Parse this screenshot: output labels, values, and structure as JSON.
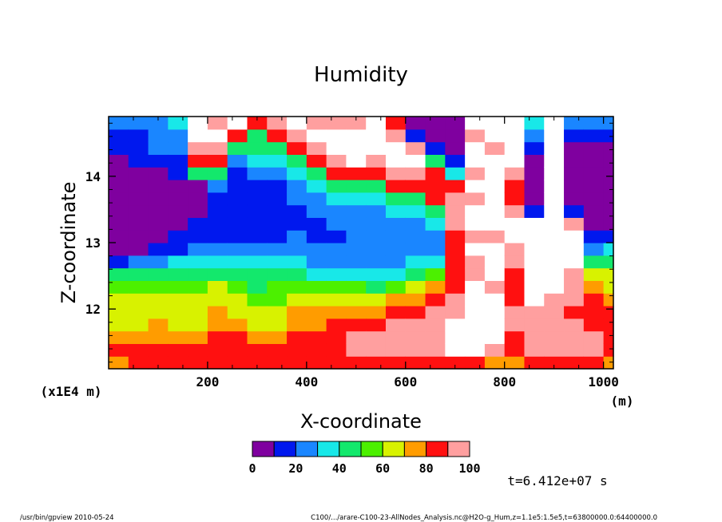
{
  "chart_data": {
    "type": "heatmap",
    "title": "Humidity",
    "xlabel": "X-coordinate",
    "ylabel": "Z-coordinate",
    "x_unit": "(m)",
    "y_scale_label": "(x1E4 m)",
    "xlim": [
      0,
      1020
    ],
    "ylim": [
      11.1,
      14.9
    ],
    "x_ticks": [
      200,
      400,
      600,
      800,
      1000
    ],
    "y_ticks": [
      12,
      13,
      14
    ],
    "x_tick_labels": [
      "200",
      "400",
      "600",
      "800",
      "1000"
    ],
    "y_tick_labels": [
      "12",
      "13",
      "14"
    ],
    "colorbar": {
      "levels": [
        0,
        10,
        20,
        30,
        40,
        50,
        60,
        70,
        80,
        90,
        100
      ],
      "labels": [
        "0",
        "20",
        "40",
        "60",
        "80",
        "100"
      ],
      "label_values": [
        0,
        20,
        40,
        60,
        80,
        100
      ],
      "colors": [
        "#7f009f",
        "#0018ee",
        "#1a86ff",
        "#18e8e8",
        "#13e86c",
        "#4cf000",
        "#d8f200",
        "#ff9c00",
        "#ff1010",
        "#ff9f9f"
      ],
      "above_color": "#ffffff"
    },
    "time_label": "t=6.412e+07 s",
    "columns": [
      {
        "x": 0,
        "levels": [
          7,
          8,
          7,
          6,
          6,
          6,
          5,
          4,
          1,
          0,
          0,
          0,
          0,
          0,
          0,
          0,
          0,
          1,
          1,
          2
        ]
      },
      {
        "x": 40,
        "levels": [
          8,
          8,
          7,
          6,
          6,
          6,
          5,
          4,
          2,
          0,
          0,
          0,
          0,
          0,
          0,
          0,
          1,
          1,
          1,
          2
        ]
      },
      {
        "x": 80,
        "levels": [
          8,
          8,
          7,
          7,
          6,
          6,
          5,
          4,
          2,
          1,
          0,
          0,
          0,
          0,
          0,
          0,
          1,
          2,
          2,
          2
        ]
      },
      {
        "x": 120,
        "levels": [
          8,
          8,
          7,
          6,
          6,
          6,
          5,
          4,
          3,
          1,
          1,
          0,
          0,
          0,
          0,
          1,
          1,
          2,
          2,
          3
        ]
      },
      {
        "x": 160,
        "levels": [
          8,
          8,
          7,
          6,
          6,
          6,
          5,
          4,
          3,
          2,
          1,
          1,
          0,
          0,
          0,
          4,
          8,
          9,
          10,
          10
        ]
      },
      {
        "x": 200,
        "levels": [
          8,
          8,
          8,
          7,
          7,
          6,
          6,
          4,
          3,
          2,
          1,
          1,
          1,
          1,
          2,
          4,
          8,
          9,
          10,
          9
        ]
      },
      {
        "x": 240,
        "levels": [
          8,
          8,
          8,
          7,
          6,
          6,
          5,
          4,
          3,
          2,
          1,
          1,
          1,
          1,
          1,
          1,
          2,
          4,
          8,
          10
        ]
      },
      {
        "x": 280,
        "levels": [
          8,
          8,
          7,
          6,
          6,
          5,
          4,
          4,
          3,
          2,
          1,
          1,
          1,
          1,
          1,
          2,
          3,
          4,
          4,
          8
        ]
      },
      {
        "x": 320,
        "levels": [
          8,
          8,
          7,
          6,
          6,
          5,
          5,
          4,
          3,
          2,
          1,
          1,
          1,
          1,
          1,
          2,
          3,
          4,
          8,
          9
        ]
      },
      {
        "x": 360,
        "levels": [
          8,
          8,
          8,
          7,
          7,
          6,
          5,
          4,
          3,
          2,
          2,
          1,
          1,
          2,
          2,
          3,
          4,
          8,
          9,
          10
        ]
      },
      {
        "x": 400,
        "levels": [
          8,
          8,
          8,
          7,
          7,
          6,
          5,
          3,
          2,
          2,
          1,
          1,
          2,
          2,
          3,
          4,
          8,
          9,
          10,
          9
        ]
      },
      {
        "x": 440,
        "levels": [
          8,
          8,
          8,
          8,
          7,
          6,
          5,
          3,
          2,
          2,
          1,
          2,
          2,
          3,
          4,
          8,
          9,
          10,
          10,
          9
        ]
      },
      {
        "x": 480,
        "levels": [
          8,
          9,
          9,
          8,
          7,
          6,
          5,
          3,
          2,
          2,
          2,
          2,
          2,
          3,
          4,
          8,
          10,
          10,
          10,
          9
        ]
      },
      {
        "x": 520,
        "levels": [
          8,
          9,
          9,
          8,
          7,
          6,
          4,
          3,
          2,
          2,
          2,
          2,
          2,
          3,
          4,
          8,
          9,
          10,
          10,
          10
        ]
      },
      {
        "x": 560,
        "levels": [
          8,
          9,
          9,
          9,
          8,
          7,
          5,
          3,
          2,
          2,
          2,
          2,
          3,
          4,
          8,
          9,
          10,
          10,
          9,
          8
        ]
      },
      {
        "x": 600,
        "levels": [
          8,
          9,
          9,
          9,
          8,
          7,
          6,
          4,
          3,
          2,
          2,
          2,
          3,
          4,
          8,
          9,
          10,
          9,
          1,
          0
        ]
      },
      {
        "x": 640,
        "levels": [
          8,
          9,
          9,
          9,
          9,
          8,
          7,
          5,
          3,
          2,
          2,
          3,
          4,
          8,
          8,
          8,
          4,
          1,
          0,
          0
        ]
      },
      {
        "x": 680,
        "levels": [
          8,
          10,
          10,
          10,
          9,
          9,
          8,
          8,
          8,
          8,
          8,
          9,
          9,
          9,
          8,
          3,
          1,
          0,
          0,
          0
        ]
      },
      {
        "x": 720,
        "levels": [
          8,
          10,
          10,
          10,
          10,
          10,
          10,
          9,
          9,
          10,
          9,
          10,
          10,
          9,
          10,
          9,
          10,
          10,
          9,
          10
        ]
      },
      {
        "x": 760,
        "levels": [
          7,
          9,
          10,
          10,
          10,
          10,
          9,
          10,
          10,
          10,
          9,
          10,
          10,
          10,
          10,
          10,
          10,
          9,
          10,
          10
        ]
      },
      {
        "x": 800,
        "levels": [
          7,
          8,
          8,
          9,
          9,
          8,
          8,
          8,
          9,
          9,
          10,
          10,
          9,
          8,
          8,
          9,
          10,
          10,
          10,
          10
        ]
      },
      {
        "x": 840,
        "levels": [
          8,
          9,
          9,
          9,
          9,
          10,
          10,
          10,
          10,
          10,
          10,
          10,
          1,
          0,
          0,
          0,
          0,
          1,
          2,
          3
        ]
      },
      {
        "x": 880,
        "levels": [
          8,
          9,
          9,
          9,
          9,
          9,
          10,
          10,
          10,
          10,
          10,
          10,
          10,
          10,
          10,
          10,
          10,
          10,
          10,
          10
        ]
      },
      {
        "x": 920,
        "levels": [
          8,
          9,
          9,
          9,
          8,
          9,
          9,
          9,
          10,
          10,
          10,
          9,
          1,
          0,
          0,
          0,
          0,
          0,
          1,
          2
        ]
      },
      {
        "x": 960,
        "levels": [
          8,
          9,
          9,
          8,
          8,
          8,
          7,
          6,
          4,
          2,
          1,
          0,
          0,
          0,
          0,
          0,
          0,
          0,
          1,
          2
        ]
      },
      {
        "x": 1000,
        "levels": [
          7,
          8,
          8,
          8,
          8,
          7,
          6,
          6,
          4,
          3,
          1,
          0,
          0,
          0,
          0,
          0,
          0,
          0,
          1,
          2
        ]
      }
    ]
  },
  "footer": {
    "left": "/usr/bin/gpview   2010-05-24",
    "right": "C100/.../arare-C100-23-AllNodes_Analysis.nc@H2O-g_Hum,z=1.1e5:1.5e5,t=63800000.0:64400000.0"
  }
}
